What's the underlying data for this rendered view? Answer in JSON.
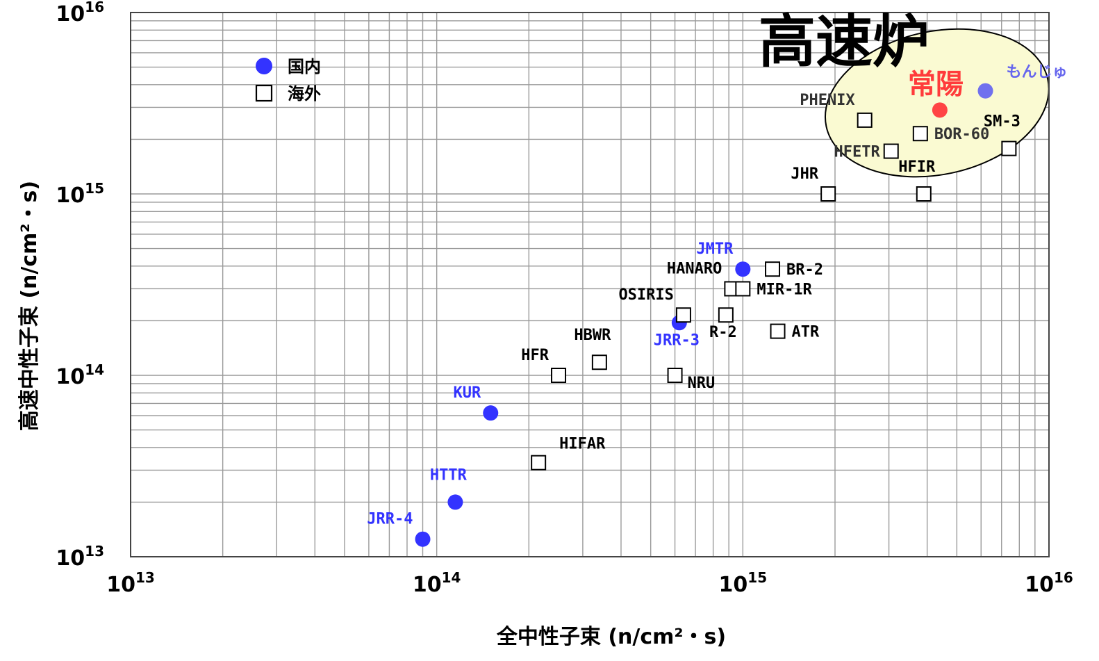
{
  "chart_data": {
    "type": "scatter",
    "xlabel": "全中性子束 (n/cm²・s)",
    "ylabel": "高速中性子束 (n/cm²・s)",
    "xscale": "log",
    "yscale": "log",
    "xlim": [
      10000000000000.0,
      1e+16
    ],
    "ylim": [
      10000000000000.0,
      1e+16
    ],
    "grid": true,
    "legend_position": "top-left",
    "x_ticks": [
      {
        "value": 10000000000000.0,
        "base": "10",
        "exp": "13"
      },
      {
        "value": 100000000000000.0,
        "base": "10",
        "exp": "14"
      },
      {
        "value": 1000000000000000.0,
        "base": "10",
        "exp": "15"
      },
      {
        "value": 1e+16,
        "base": "10",
        "exp": "16"
      }
    ],
    "y_ticks": [
      {
        "value": 10000000000000.0,
        "base": "10",
        "exp": "13"
      },
      {
        "value": 100000000000000.0,
        "base": "10",
        "exp": "14"
      },
      {
        "value": 1000000000000000.0,
        "base": "10",
        "exp": "15"
      },
      {
        "value": 1e+16,
        "base": "10",
        "exp": "16"
      }
    ],
    "series": [
      {
        "name": "国内",
        "marker": "filled-circle",
        "color": "#3333ff"
      },
      {
        "name": "海外",
        "marker": "open-square",
        "color": "#000000"
      }
    ],
    "points": [
      {
        "label": "JRR-4",
        "series": "国内",
        "x": 90000000000000.0,
        "y": 12500000000000.0,
        "label_color": "#3333ff",
        "label_anchor": "left-above"
      },
      {
        "label": "HTTR",
        "series": "国内",
        "x": 115000000000000.0,
        "y": 20000000000000.0,
        "label_color": "#3333ff",
        "label_anchor": "above"
      },
      {
        "label": "KUR",
        "series": "国内",
        "x": 150000000000000.0,
        "y": 62000000000000.0,
        "label_color": "#3333ff",
        "label_anchor": "left-above"
      },
      {
        "label": "JRR-3",
        "series": "国内",
        "x": 620000000000000.0,
        "y": 195000000000000.0,
        "label_color": "#3333ff",
        "label_anchor": "below"
      },
      {
        "label": "JMTR",
        "series": "国内",
        "x": 1000000000000000.0,
        "y": 385000000000000.0,
        "label_color": "#3333ff",
        "label_anchor": "left-above"
      },
      {
        "label": "常陽",
        "series": "国内",
        "x": 4400000000000000.0,
        "y": 2900000000000000.0,
        "label_color": "#ff3b3b",
        "label_anchor": "above-large",
        "marker_color": "#ff4444"
      },
      {
        "label": "もんじゅ",
        "series": "国内",
        "x": 6200000000000000.0,
        "y": 3700000000000000.0,
        "label_color": "#6666ee",
        "label_anchor": "right-above",
        "marker_color": "#7070ee"
      },
      {
        "label": "HIFAR",
        "series": "海外",
        "x": 215000000000000.0,
        "y": 33000000000000.0,
        "label_color": "#000000",
        "label_anchor": "right-above"
      },
      {
        "label": "HFR",
        "series": "海外",
        "x": 250000000000000.0,
        "y": 100000000000000.0,
        "label_color": "#000000",
        "label_anchor": "left-above"
      },
      {
        "label": "HBWR",
        "series": "海外",
        "x": 340000000000000.0,
        "y": 118000000000000.0,
        "label_color": "#000000",
        "label_anchor": "above"
      },
      {
        "label": "NRU",
        "series": "海外",
        "x": 600000000000000.0,
        "y": 100000000000000.0,
        "label_color": "#000000",
        "label_anchor": "right-below"
      },
      {
        "label": "OSIRIS",
        "series": "海外",
        "x": 640000000000000.0,
        "y": 215000000000000.0,
        "label_color": "#000000",
        "label_anchor": "left-above"
      },
      {
        "label": "R-2",
        "series": "海外",
        "x": 880000000000000.0,
        "y": 215000000000000.0,
        "label_color": "#000000",
        "label_anchor": "below"
      },
      {
        "label": "HANARO",
        "series": "海外",
        "x": 920000000000000.0,
        "y": 300000000000000.0,
        "label_color": "#000000",
        "label_anchor": "left-above"
      },
      {
        "label": "MIR-1R",
        "series": "海外",
        "x": 1000000000000000.0,
        "y": 300000000000000.0,
        "label_color": "#000000",
        "label_anchor": "right"
      },
      {
        "label": "ATR",
        "series": "海外",
        "x": 1300000000000000.0,
        "y": 175000000000000.0,
        "label_color": "#000000",
        "label_anchor": "right"
      },
      {
        "label": "BR-2",
        "series": "海外",
        "x": 1250000000000000.0,
        "y": 385000000000000.0,
        "label_color": "#000000",
        "label_anchor": "right"
      },
      {
        "label": "JHR",
        "series": "海外",
        "x": 1900000000000000.0,
        "y": 1000000000000000.0,
        "label_color": "#000000",
        "label_anchor": "left-above"
      },
      {
        "label": "HFIR",
        "series": "海外",
        "x": 3900000000000000.0,
        "y": 1000000000000000.0,
        "label_color": "#000000",
        "label_anchor": "above"
      },
      {
        "label": "PHENIX",
        "series": "海外",
        "x": 2500000000000000.0,
        "y": 2550000000000000.0,
        "label_color": "#333333",
        "label_anchor": "left-above"
      },
      {
        "label": "BOR-60",
        "series": "海外",
        "x": 3800000000000000.0,
        "y": 2150000000000000.0,
        "label_color": "#333333",
        "label_anchor": "right"
      },
      {
        "label": "HFETR",
        "series": "海外",
        "x": 3050000000000000.0,
        "y": 1720000000000000.0,
        "label_color": "#333333",
        "label_anchor": "left"
      },
      {
        "label": "SM-3",
        "series": "海外",
        "x": 7400000000000000.0,
        "y": 1780000000000000.0,
        "label_color": "#000000",
        "label_anchor": "above"
      }
    ],
    "annotations": [
      {
        "text": "高速炉",
        "region": "top-right",
        "highlight_color": "#fafad2"
      }
    ]
  }
}
